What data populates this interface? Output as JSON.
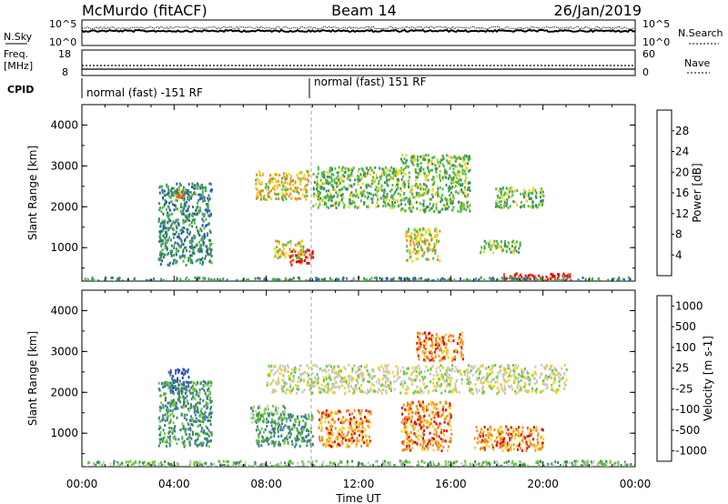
{
  "header": {
    "station": "McMurdo (fitACF)",
    "beam": "Beam 14",
    "date": "26/Jan/2019"
  },
  "noise_panel": {
    "left_label": "N.Sky",
    "right_label": "N.Search",
    "left_ticks": [
      "10^5",
      "10^0"
    ],
    "right_ticks": [
      "10^5",
      "10^0"
    ]
  },
  "freq_panel": {
    "left_label_1": "Freq.",
    "left_label_2": "[MHz]",
    "right_label": "Nave",
    "left_ticks": [
      "18",
      "8"
    ],
    "right_ticks": [
      "60",
      "0"
    ]
  },
  "cpid_panel": {
    "label": "CPID",
    "modes": [
      "normal (fast) -151 RF",
      "normal (fast) 151 RF"
    ]
  },
  "chart_data": [
    {
      "type": "heatmap",
      "name": "power",
      "ylabel": "Slant Range [km]",
      "colorbar_label": "Power [dB]",
      "colorbar_ticks": [
        "28",
        "24",
        "20",
        "16",
        "12",
        "8",
        "4"
      ],
      "colors": [
        "#0000ff",
        "#2a5ab8",
        "#3e8a5e",
        "#4cb84a",
        "#f0d21e",
        "#f08c1e",
        "#f0501e",
        "#e60000"
      ],
      "ylim": [
        180,
        4500
      ],
      "yticks": [
        "1000",
        "2000",
        "3000",
        "4000"
      ],
      "xlim": [
        "00:00",
        "24:00"
      ],
      "blobs": [
        {
          "t": [
            4.0,
            4.4
          ],
          "r": [
            2250,
            2450
          ],
          "level": 5
        },
        {
          "t": [
            3.3,
            5.6
          ],
          "r": [
            600,
            2600
          ],
          "level": 2
        },
        {
          "t": [
            7.5,
            9.8
          ],
          "r": [
            2200,
            2900
          ],
          "level": 4
        },
        {
          "t": [
            9.0,
            10.0
          ],
          "r": [
            600,
            1000
          ],
          "level": 7
        },
        {
          "t": [
            8.3,
            9.6
          ],
          "r": [
            750,
            1200
          ],
          "level": 4
        },
        {
          "t": [
            10.0,
            13.8
          ],
          "r": [
            2000,
            3000
          ],
          "level": 3
        },
        {
          "t": [
            13.8,
            16.8
          ],
          "r": [
            1900,
            3300
          ],
          "level": 3
        },
        {
          "t": [
            17.9,
            20.0
          ],
          "r": [
            2000,
            2500
          ],
          "level": 3
        },
        {
          "t": [
            18.2,
            21.2
          ],
          "r": [
            180,
            400
          ],
          "level": 7
        },
        {
          "t": [
            14.0,
            15.5
          ],
          "r": [
            700,
            1500
          ],
          "level": 4
        },
        {
          "t": [
            17.2,
            19.0
          ],
          "r": [
            900,
            1200
          ],
          "level": 3
        },
        {
          "t": [
            0.0,
            24.0
          ],
          "r": [
            180,
            300
          ],
          "level": 2
        }
      ]
    },
    {
      "type": "heatmap",
      "name": "velocity",
      "xlabel": "Time UT",
      "ylabel": "Slant Range [km]",
      "colorbar_label": "Velocity [m s-1]",
      "colorbar_ticks": [
        "1000",
        "500",
        "100",
        "25",
        "-25",
        "-100",
        "-500",
        "-1000"
      ],
      "colors": [
        "#2a44b8",
        "#3a78a8",
        "#3e8a5e",
        "#6bc83a",
        "#c8c8c8",
        "#f0d21e",
        "#f08c1e",
        "#e60000"
      ],
      "ylim": [
        180,
        4500
      ],
      "yticks": [
        "1000",
        "2000",
        "3000",
        "4000"
      ],
      "xlim": [
        "00:00",
        "24:00"
      ],
      "xticks": [
        "00:00",
        "04:00",
        "08:00",
        "12:00",
        "16:00",
        "20:00",
        "00:00"
      ],
      "blobs": [
        {
          "t": [
            3.7,
            4.6
          ],
          "r": [
            2000,
            2600
          ],
          "level": 0
        },
        {
          "t": [
            3.3,
            5.6
          ],
          "r": [
            700,
            2300
          ],
          "level": 2
        },
        {
          "t": [
            8.0,
            21.0
          ],
          "r": [
            2000,
            2700
          ],
          "level": 4
        },
        {
          "t": [
            7.3,
            8.8
          ],
          "r": [
            1300,
            1700
          ],
          "level": 3
        },
        {
          "t": [
            7.5,
            10.0
          ],
          "r": [
            700,
            1500
          ],
          "level": 2
        },
        {
          "t": [
            10.2,
            12.5
          ],
          "r": [
            700,
            1600
          ],
          "level": 6
        },
        {
          "t": [
            13.8,
            16.0
          ],
          "r": [
            600,
            1800
          ],
          "level": 6
        },
        {
          "t": [
            14.5,
            16.5
          ],
          "r": [
            2800,
            3500
          ],
          "level": 6
        },
        {
          "t": [
            17.0,
            20.0
          ],
          "r": [
            600,
            1200
          ],
          "level": 6
        },
        {
          "t": [
            0.0,
            24.0
          ],
          "r": [
            180,
            350
          ],
          "level": 3
        }
      ]
    }
  ]
}
